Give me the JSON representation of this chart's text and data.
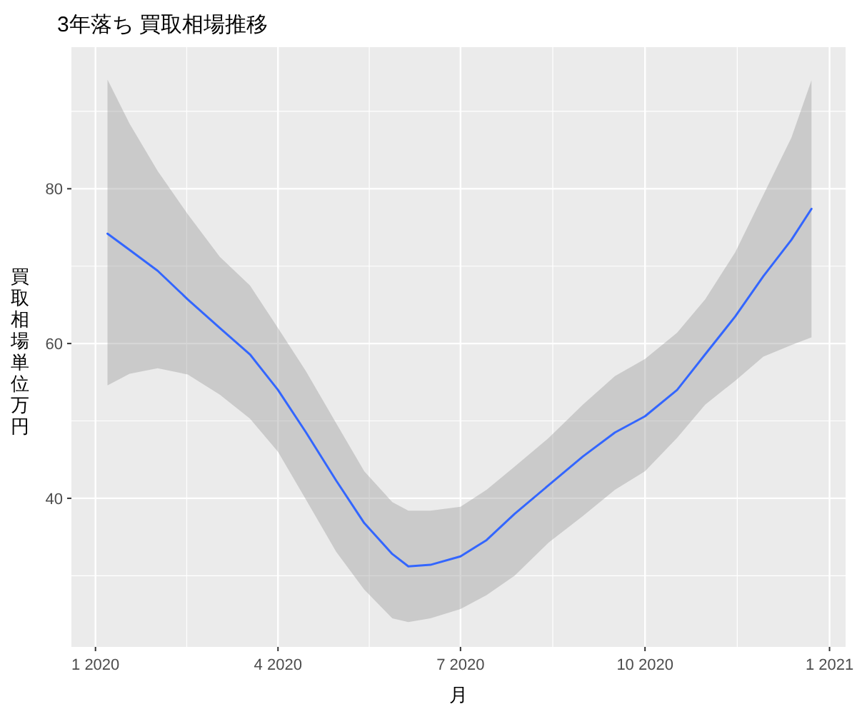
{
  "chart_data": {
    "type": "line",
    "title": "3年落ち 買取相場推移",
    "xlabel": "月",
    "ylabel": "買取相場単位万円",
    "x": [
      "2020-01-07",
      "2020-01-18",
      "2020-02-01",
      "2020-02-16",
      "2020-03-03",
      "2020-03-18",
      "2020-04-01",
      "2020-04-15",
      "2020-04-30",
      "2020-05-14",
      "2020-05-28",
      "2020-06-05",
      "2020-06-16",
      "2020-07-01",
      "2020-07-14",
      "2020-07-28",
      "2020-08-14",
      "2020-08-31",
      "2020-09-16",
      "2020-10-01",
      "2020-10-17",
      "2020-10-31",
      "2020-11-15",
      "2020-11-29",
      "2020-12-13",
      "2020-12-23"
    ],
    "series": [
      {
        "color": "#3366ff",
        "values": [
          74.2,
          72.1,
          69.4,
          65.7,
          62.0,
          58.6,
          54.0,
          48.5,
          42.3,
          36.8,
          32.8,
          31.2,
          31.4,
          32.5,
          34.6,
          38.0,
          41.7,
          45.4,
          48.5,
          50.6,
          54.0,
          58.6,
          63.5,
          68.7,
          73.4,
          77.4
        ],
        "upper": [
          94.1,
          88.4,
          82.3,
          76.7,
          71.2,
          67.5,
          62.0,
          56.4,
          49.7,
          43.5,
          39.5,
          38.4,
          38.4,
          38.9,
          41.1,
          44.1,
          47.8,
          52.1,
          55.8,
          58.0,
          61.4,
          65.7,
          71.8,
          79.2,
          86.6,
          94.0
        ],
        "lower": [
          54.6,
          56.1,
          56.8,
          56.0,
          53.4,
          50.3,
          46.0,
          39.8,
          33.1,
          28.2,
          24.5,
          24.0,
          24.5,
          25.7,
          27.5,
          30.0,
          34.3,
          37.7,
          41.1,
          43.5,
          47.8,
          52.1,
          55.2,
          58.3,
          59.8,
          60.8
        ]
      }
    ],
    "xlim": [
      "2019-12-20",
      "2021-01-09"
    ],
    "ylim": [
      20.8,
      98.3
    ],
    "xticks": [
      {
        "value": "2020-01-01",
        "label": "1 2020"
      },
      {
        "value": "2020-04-01",
        "label": "4 2020"
      },
      {
        "value": "2020-07-01",
        "label": "7 2020"
      },
      {
        "value": "2020-10-01",
        "label": "10 2020"
      },
      {
        "value": "2021-01-01",
        "label": "1 2021"
      }
    ],
    "yticks": [
      40,
      60,
      80
    ],
    "grid": true,
    "marker": "none",
    "line_style": "solid"
  }
}
